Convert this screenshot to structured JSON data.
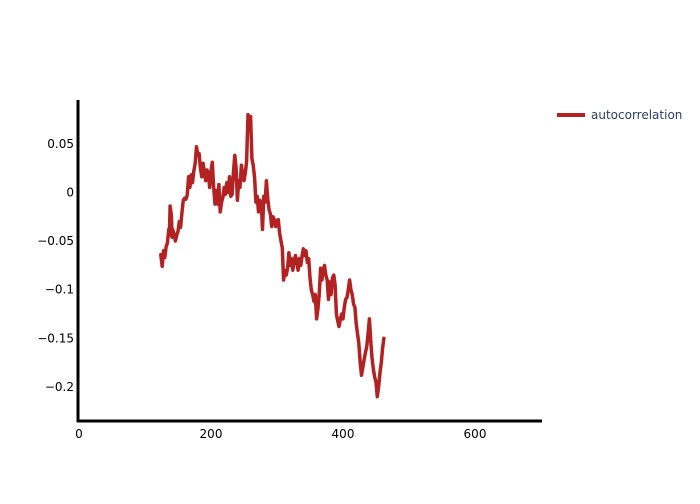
{
  "chart_data": {
    "type": "line",
    "title": "",
    "xlabel": "",
    "ylabel": "",
    "xlim": [
      0,
      700
    ],
    "ylim": [
      -0.235,
      0.095
    ],
    "grid": false,
    "legend_position": "top-right",
    "x_ticks": [
      0,
      200,
      400,
      600
    ],
    "x_tick_labels": [
      "0",
      "200",
      "400",
      "600"
    ],
    "y_ticks": [
      0.05,
      0,
      -0.05,
      -0.1,
      -0.15,
      -0.2
    ],
    "y_tick_labels": [
      "0.05",
      "0",
      "−0.05",
      "−0.1",
      "−0.15",
      "−0.2"
    ],
    "series": [
      {
        "name": "autocorrelation",
        "color": "#b22222",
        "points": [
          [
            124,
            -0.064
          ],
          [
            126,
            -0.076
          ],
          [
            128,
            -0.06
          ],
          [
            130,
            -0.067
          ],
          [
            132,
            -0.056
          ],
          [
            134,
            -0.052
          ],
          [
            136,
            -0.038
          ],
          [
            137,
            -0.044
          ],
          [
            138,
            -0.014
          ],
          [
            140,
            -0.024
          ],
          [
            141,
            -0.046
          ],
          [
            142,
            -0.038
          ],
          [
            144,
            -0.043
          ],
          [
            146,
            -0.05
          ],
          [
            148,
            -0.044
          ],
          [
            150,
            -0.04
          ],
          [
            152,
            -0.03
          ],
          [
            154,
            -0.036
          ],
          [
            156,
            -0.02
          ],
          [
            158,
            -0.008
          ],
          [
            160,
            -0.006
          ],
          [
            162,
            -0.007
          ],
          [
            164,
            -0.003
          ],
          [
            166,
            0.016
          ],
          [
            168,
            0.005
          ],
          [
            170,
            0.018
          ],
          [
            172,
            0.01
          ],
          [
            174,
            0.022
          ],
          [
            176,
            0.03
          ],
          [
            178,
            0.047
          ],
          [
            180,
            0.038
          ],
          [
            182,
            0.04
          ],
          [
            184,
            0.025
          ],
          [
            186,
            0.016
          ],
          [
            188,
            0.03
          ],
          [
            190,
            0.021
          ],
          [
            192,
            0.012
          ],
          [
            194,
            0.023
          ],
          [
            196,
            0.018
          ],
          [
            198,
            0.005
          ],
          [
            200,
            0.022
          ],
          [
            202,
            0.031
          ],
          [
            204,
            0.006
          ],
          [
            206,
            -0.012
          ],
          [
            208,
            0.002
          ],
          [
            210,
            -0.012
          ],
          [
            212,
            0.008
          ],
          [
            214,
            -0.02
          ],
          [
            216,
            -0.01
          ],
          [
            218,
            -0.005
          ],
          [
            220,
            0.005
          ],
          [
            222,
            -0.002
          ],
          [
            224,
            0.01
          ],
          [
            226,
            0.0
          ],
          [
            228,
            0.016
          ],
          [
            230,
            -0.004
          ],
          [
            232,
            -0.002
          ],
          [
            234,
            0.02
          ],
          [
            236,
            0.038
          ],
          [
            238,
            0.025
          ],
          [
            240,
            -0.008
          ],
          [
            242,
            0.012
          ],
          [
            244,
            0.005
          ],
          [
            246,
            0.028
          ],
          [
            248,
            0.018
          ],
          [
            250,
            0.012
          ],
          [
            252,
            0.02
          ],
          [
            254,
            0.032
          ],
          [
            256,
            0.08
          ],
          [
            258,
            0.065
          ],
          [
            260,
            0.078
          ],
          [
            262,
            0.035
          ],
          [
            264,
            0.028
          ],
          [
            266,
            0.015
          ],
          [
            268,
            -0.01
          ],
          [
            270,
            -0.004
          ],
          [
            272,
            -0.02
          ],
          [
            274,
            -0.008
          ],
          [
            276,
            -0.01
          ],
          [
            278,
            -0.038
          ],
          [
            280,
            -0.004
          ],
          [
            282,
            -0.01
          ],
          [
            284,
            0.012
          ],
          [
            286,
            -0.007
          ],
          [
            288,
            -0.018
          ],
          [
            290,
            -0.022
          ],
          [
            292,
            -0.035
          ],
          [
            294,
            -0.025
          ],
          [
            296,
            -0.028
          ],
          [
            298,
            -0.035
          ],
          [
            300,
            -0.03
          ],
          [
            302,
            -0.028
          ],
          [
            304,
            -0.042
          ],
          [
            306,
            -0.05
          ],
          [
            308,
            -0.057
          ],
          [
            310,
            -0.09
          ],
          [
            312,
            -0.08
          ],
          [
            314,
            -0.085
          ],
          [
            316,
            -0.078
          ],
          [
            318,
            -0.062
          ],
          [
            320,
            -0.075
          ],
          [
            322,
            -0.068
          ],
          [
            324,
            -0.08
          ],
          [
            326,
            -0.07
          ],
          [
            328,
            -0.065
          ],
          [
            330,
            -0.072
          ],
          [
            332,
            -0.08
          ],
          [
            334,
            -0.068
          ],
          [
            336,
            -0.075
          ],
          [
            338,
            -0.065
          ],
          [
            340,
            -0.058
          ],
          [
            342,
            -0.065
          ],
          [
            344,
            -0.06
          ],
          [
            346,
            -0.072
          ],
          [
            348,
            -0.068
          ],
          [
            350,
            -0.088
          ],
          [
            352,
            -0.1
          ],
          [
            354,
            -0.105
          ],
          [
            356,
            -0.112
          ],
          [
            358,
            -0.105
          ],
          [
            360,
            -0.13
          ],
          [
            362,
            -0.12
          ],
          [
            364,
            -0.105
          ],
          [
            366,
            -0.078
          ],
          [
            368,
            -0.09
          ],
          [
            370,
            -0.08
          ],
          [
            372,
            -0.075
          ],
          [
            374,
            -0.085
          ],
          [
            376,
            -0.09
          ],
          [
            378,
            -0.11
          ],
          [
            380,
            -0.092
          ],
          [
            382,
            -0.105
          ],
          [
            384,
            -0.088
          ],
          [
            386,
            -0.085
          ],
          [
            388,
            -0.095
          ],
          [
            390,
            -0.125
          ],
          [
            392,
            -0.132
          ],
          [
            394,
            -0.138
          ],
          [
            396,
            -0.13
          ],
          [
            398,
            -0.125
          ],
          [
            400,
            -0.13
          ],
          [
            402,
            -0.118
          ],
          [
            404,
            -0.11
          ],
          [
            406,
            -0.108
          ],
          [
            408,
            -0.1
          ],
          [
            410,
            -0.09
          ],
          [
            412,
            -0.1
          ],
          [
            414,
            -0.105
          ],
          [
            416,
            -0.115
          ],
          [
            418,
            -0.118
          ],
          [
            420,
            -0.135
          ],
          [
            422,
            -0.145
          ],
          [
            424,
            -0.155
          ],
          [
            426,
            -0.175
          ],
          [
            428,
            -0.188
          ],
          [
            430,
            -0.18
          ],
          [
            432,
            -0.172
          ],
          [
            434,
            -0.165
          ],
          [
            436,
            -0.158
          ],
          [
            438,
            -0.145
          ],
          [
            440,
            -0.13
          ],
          [
            442,
            -0.152
          ],
          [
            444,
            -0.17
          ],
          [
            446,
            -0.182
          ],
          [
            448,
            -0.19
          ],
          [
            450,
            -0.195
          ],
          [
            452,
            -0.21
          ],
          [
            454,
            -0.2
          ],
          [
            456,
            -0.185
          ],
          [
            458,
            -0.175
          ],
          [
            460,
            -0.16
          ],
          [
            462,
            -0.15
          ]
        ]
      }
    ]
  }
}
